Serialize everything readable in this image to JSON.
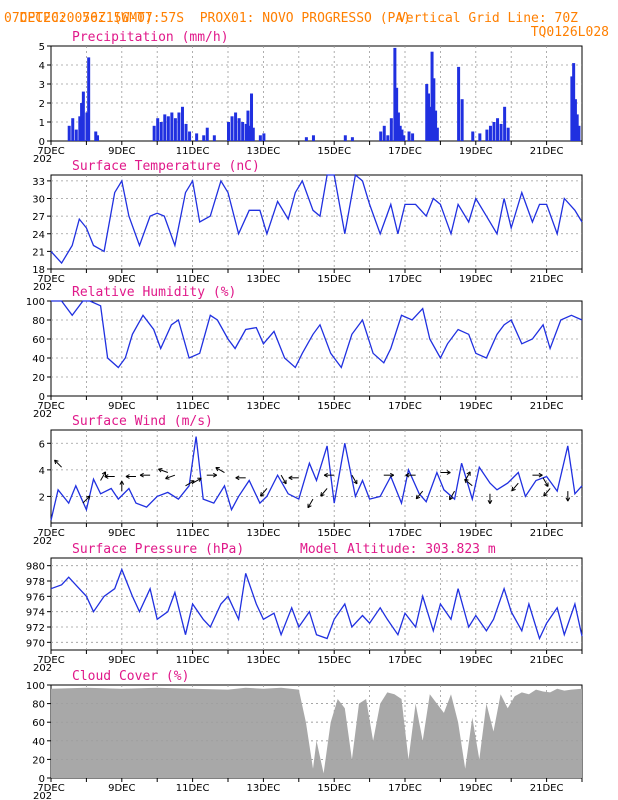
{
  "header": {
    "line1_left": "CPTEC:",
    "coords": "056:15W-07:57S",
    "station": "PROX01: NOVO PROGRESSO (PA)",
    "date": "07DEC2020 70Z (GMT)",
    "grid_line": "Vertical Grid Line: 70Z",
    "model": "TQ0126L028"
  },
  "x_axis": {
    "day_start": 7,
    "day_end": 22,
    "labels": [
      "7DEC",
      "9DEC",
      "11DEC",
      "13DEC",
      "15DEC",
      "17DEC",
      "19DEC",
      "21DEC"
    ],
    "label_days": [
      7,
      9,
      11,
      13,
      15,
      17,
      19,
      21
    ],
    "overlap_mark": "202"
  },
  "colors": {
    "line": "#2030e0",
    "bar": "#2030e0",
    "cloud": "#a8a8a8",
    "title": "#e0198a",
    "header": "#ff7f00"
  },
  "chart_data": [
    {
      "type": "bar",
      "title": "Precipitation (mm/h)",
      "ylim": [
        0,
        5
      ],
      "yticks": [
        0,
        1,
        2,
        3,
        4,
        5
      ],
      "series_x_days": [
        7.5,
        7.6,
        7.7,
        7.8,
        7.85,
        7.9,
        8.0,
        8.05,
        8.25,
        8.3,
        9.9,
        10.0,
        10.1,
        10.2,
        10.3,
        10.4,
        10.5,
        10.6,
        10.7,
        10.8,
        10.9,
        11.1,
        11.3,
        11.4,
        11.6,
        12.0,
        12.1,
        12.2,
        12.3,
        12.4,
        12.5,
        12.55,
        12.6,
        12.65,
        12.7,
        12.9,
        13.0,
        14.2,
        14.4,
        15.3,
        15.5,
        16.3,
        16.4,
        16.5,
        16.6,
        16.7,
        16.75,
        16.8,
        16.85,
        16.9,
        16.95,
        17.1,
        17.2,
        17.6,
        17.65,
        17.7,
        17.75,
        17.8,
        17.85,
        17.9,
        18.5,
        18.6,
        18.9,
        19.1,
        19.3,
        19.4,
        19.5,
        19.6,
        19.7,
        19.8,
        19.9,
        21.7,
        21.75,
        21.8,
        21.85,
        21.9
      ],
      "values": [
        0.8,
        1.2,
        0.6,
        1.3,
        2.0,
        2.6,
        1.5,
        4.4,
        0.5,
        0.3,
        0.8,
        1.2,
        1.0,
        1.4,
        1.3,
        1.5,
        1.2,
        1.5,
        1.8,
        0.9,
        0.5,
        0.4,
        0.3,
        0.7,
        0.3,
        1.0,
        1.3,
        1.5,
        1.2,
        1.0,
        0.9,
        1.6,
        0.8,
        2.5,
        0.7,
        0.3,
        0.4,
        0.2,
        0.3,
        0.3,
        0.2,
        0.5,
        0.8,
        0.3,
        1.2,
        4.9,
        2.8,
        1.5,
        0.8,
        0.6,
        0.3,
        0.5,
        0.4,
        3.0,
        2.5,
        1.8,
        4.7,
        3.3,
        1.6,
        0.7,
        3.9,
        2.2,
        0.5,
        0.4,
        0.6,
        0.8,
        1.0,
        1.2,
        0.9,
        1.8,
        0.7,
        3.4,
        4.1,
        2.2,
        1.4,
        0.8
      ]
    },
    {
      "type": "line",
      "title": "Surface Temperature (nC)",
      "ylim": [
        18,
        34
      ],
      "yticks": [
        18,
        21,
        24,
        27,
        30,
        33
      ],
      "x_days": [
        7.0,
        7.3,
        7.6,
        7.8,
        8.0,
        8.2,
        8.5,
        8.8,
        9.0,
        9.2,
        9.5,
        9.8,
        10.0,
        10.2,
        10.5,
        10.8,
        11.0,
        11.2,
        11.5,
        11.8,
        12.0,
        12.3,
        12.6,
        12.9,
        13.1,
        13.4,
        13.7,
        13.9,
        14.1,
        14.4,
        14.6,
        14.8,
        15.0,
        15.3,
        15.6,
        15.8,
        16.0,
        16.3,
        16.6,
        16.8,
        17.0,
        17.3,
        17.6,
        17.8,
        18.0,
        18.3,
        18.5,
        18.8,
        19.0,
        19.3,
        19.6,
        19.8,
        20.0,
        20.3,
        20.6,
        20.8,
        21.0,
        21.3,
        21.5,
        21.8,
        22.0
      ],
      "values": [
        21,
        19,
        22,
        26.5,
        25,
        22,
        21,
        31,
        33,
        27,
        22,
        27,
        27.5,
        27,
        22,
        31,
        33,
        26,
        27,
        33,
        31,
        24,
        28,
        28,
        24,
        29.5,
        26.5,
        31,
        33,
        28,
        27,
        34,
        34,
        24,
        34,
        33,
        29,
        24,
        29,
        24,
        29,
        29,
        27,
        30,
        29,
        24,
        29,
        26,
        30,
        27,
        24,
        30,
        25,
        31,
        26,
        29,
        29,
        24,
        30,
        28,
        26
      ]
    },
    {
      "type": "line",
      "title": "Relative Humidity (%)",
      "ylim": [
        0,
        100
      ],
      "yticks": [
        0,
        20,
        40,
        60,
        80,
        100
      ],
      "x_days": [
        7.0,
        7.3,
        7.6,
        7.9,
        8.1,
        8.4,
        8.6,
        8.9,
        9.1,
        9.3,
        9.6,
        9.9,
        10.1,
        10.4,
        10.6,
        10.9,
        11.2,
        11.5,
        11.7,
        12.0,
        12.2,
        12.5,
        12.8,
        13.0,
        13.3,
        13.6,
        13.9,
        14.1,
        14.4,
        14.6,
        14.9,
        15.2,
        15.5,
        15.8,
        16.1,
        16.4,
        16.6,
        16.9,
        17.2,
        17.5,
        17.7,
        18.0,
        18.2,
        18.5,
        18.8,
        19.0,
        19.3,
        19.6,
        19.8,
        20.0,
        20.3,
        20.6,
        20.9,
        21.1,
        21.4,
        21.7,
        22.0
      ],
      "values": [
        100,
        100,
        85,
        100,
        100,
        95,
        40,
        30,
        40,
        65,
        85,
        70,
        50,
        75,
        80,
        40,
        45,
        85,
        80,
        60,
        50,
        70,
        72,
        55,
        68,
        40,
        30,
        45,
        65,
        75,
        45,
        30,
        65,
        80,
        45,
        35,
        50,
        85,
        80,
        92,
        60,
        40,
        55,
        70,
        65,
        45,
        40,
        65,
        75,
        80,
        55,
        60,
        75,
        50,
        80,
        85,
        80
      ]
    },
    {
      "type": "line",
      "title": "Surface Wind (m/s)",
      "ylim": [
        0,
        7
      ],
      "yticks": [
        2,
        4,
        6
      ],
      "x_days": [
        7.0,
        7.2,
        7.5,
        7.7,
        8.0,
        8.2,
        8.4,
        8.7,
        8.9,
        9.2,
        9.4,
        9.7,
        10.0,
        10.3,
        10.6,
        10.9,
        11.1,
        11.3,
        11.6,
        11.9,
        12.1,
        12.3,
        12.6,
        12.9,
        13.1,
        13.4,
        13.7,
        14.0,
        14.3,
        14.5,
        14.8,
        15.0,
        15.3,
        15.6,
        15.8,
        16.0,
        16.3,
        16.6,
        16.9,
        17.1,
        17.4,
        17.6,
        17.9,
        18.1,
        18.4,
        18.6,
        18.9,
        19.1,
        19.4,
        19.6,
        19.9,
        20.2,
        20.4,
        20.7,
        21.0,
        21.3,
        21.6,
        21.8,
        22.0
      ],
      "values": [
        0.2,
        2.5,
        1.5,
        2.8,
        1.0,
        3.3,
        2.2,
        2.6,
        1.8,
        2.6,
        1.5,
        1.2,
        2.0,
        2.3,
        1.8,
        2.8,
        6.5,
        1.8,
        1.5,
        2.8,
        1.0,
        2.0,
        3.2,
        1.5,
        2.0,
        3.6,
        2.2,
        1.8,
        4.5,
        3.2,
        5.8,
        1.5,
        6.0,
        2.0,
        3.2,
        1.8,
        2.0,
        3.5,
        1.5,
        4.0,
        2.2,
        1.6,
        3.8,
        2.5,
        1.8,
        4.5,
        1.8,
        4.2,
        3.0,
        2.5,
        3.0,
        3.8,
        2.0,
        3.2,
        3.5,
        2.4,
        5.8,
        2.2,
        2.8
      ],
      "arrows": [
        {
          "day": 7.3,
          "speed": 4.2,
          "dir": 135
        },
        {
          "day": 7.9,
          "speed": 1.5,
          "dir": 45
        },
        {
          "day": 8.4,
          "speed": 3.2,
          "dir": 60
        },
        {
          "day": 8.8,
          "speed": 3.5,
          "dir": 180
        },
        {
          "day": 9.0,
          "speed": 2.4,
          "dir": 90
        },
        {
          "day": 9.4,
          "speed": 3.5,
          "dir": 180
        },
        {
          "day": 9.8,
          "speed": 3.6,
          "dir": 180
        },
        {
          "day": 10.3,
          "speed": 3.8,
          "dir": 160
        },
        {
          "day": 10.5,
          "speed": 3.6,
          "dir": 200
        },
        {
          "day": 10.8,
          "speed": 2.8,
          "dir": 30
        },
        {
          "day": 11.0,
          "speed": 3.0,
          "dir": 30
        },
        {
          "day": 11.4,
          "speed": 3.6,
          "dir": 0
        },
        {
          "day": 11.9,
          "speed": 3.8,
          "dir": 150
        },
        {
          "day": 12.5,
          "speed": 3.4,
          "dir": 180
        },
        {
          "day": 13.1,
          "speed": 2.6,
          "dir": 230
        },
        {
          "day": 13.5,
          "speed": 3.6,
          "dir": 300
        },
        {
          "day": 14.0,
          "speed": 3.4,
          "dir": 180
        },
        {
          "day": 14.4,
          "speed": 1.8,
          "dir": 240
        },
        {
          "day": 14.8,
          "speed": 2.6,
          "dir": 230
        },
        {
          "day": 15.0,
          "speed": 3.6,
          "dir": 180
        },
        {
          "day": 15.5,
          "speed": 3.6,
          "dir": 300
        },
        {
          "day": 16.4,
          "speed": 3.6,
          "dir": 0
        },
        {
          "day": 17.3,
          "speed": 3.6,
          "dir": 180
        },
        {
          "day": 17.5,
          "speed": 2.4,
          "dir": 230
        },
        {
          "day": 18.0,
          "speed": 3.8,
          "dir": 0
        },
        {
          "day": 18.4,
          "speed": 2.4,
          "dir": 240
        },
        {
          "day": 18.7,
          "speed": 3.2,
          "dir": 60
        },
        {
          "day": 18.9,
          "speed": 2.8,
          "dir": 140
        },
        {
          "day": 19.4,
          "speed": 2.2,
          "dir": 270
        },
        {
          "day": 20.2,
          "speed": 3.0,
          "dir": 230
        },
        {
          "day": 20.6,
          "speed": 3.6,
          "dir": 0
        },
        {
          "day": 20.9,
          "speed": 3.4,
          "dir": 300
        },
        {
          "day": 21.1,
          "speed": 2.6,
          "dir": 230
        },
        {
          "day": 21.6,
          "speed": 2.4,
          "dir": 270
        }
      ]
    },
    {
      "type": "line",
      "title": "Surface Pressure (hPa)",
      "subtitle": "Model Altitude: 303.823 m",
      "ylim": [
        969,
        981
      ],
      "yticks": [
        970,
        972,
        974,
        976,
        978,
        980
      ],
      "x_days": [
        7.0,
        7.3,
        7.5,
        7.8,
        8.0,
        8.2,
        8.5,
        8.8,
        9.0,
        9.3,
        9.5,
        9.8,
        10.0,
        10.3,
        10.5,
        10.8,
        11.0,
        11.3,
        11.5,
        11.8,
        12.0,
        12.3,
        12.5,
        12.8,
        13.0,
        13.3,
        13.5,
        13.8,
        14.0,
        14.3,
        14.5,
        14.8,
        15.0,
        15.3,
        15.5,
        15.8,
        16.0,
        16.3,
        16.5,
        16.8,
        17.0,
        17.3,
        17.5,
        17.8,
        18.0,
        18.3,
        18.5,
        18.8,
        19.0,
        19.3,
        19.5,
        19.8,
        20.0,
        20.3,
        20.5,
        20.8,
        21.0,
        21.3,
        21.5,
        21.8,
        22.0
      ],
      "values": [
        977,
        977.5,
        978.5,
        977,
        976,
        974,
        976,
        977,
        979.5,
        976,
        974,
        977,
        973,
        974,
        976.5,
        971,
        975,
        973,
        972,
        975,
        976,
        973,
        979,
        975,
        973,
        973.8,
        971,
        974.5,
        972,
        974,
        971,
        970.5,
        973,
        975,
        972,
        973.5,
        972.5,
        974.5,
        973,
        971,
        973.8,
        972,
        976,
        971.5,
        975,
        973,
        977,
        972,
        973.5,
        971.5,
        973,
        977,
        974,
        971.5,
        975,
        970.5,
        972.5,
        974.5,
        971,
        975,
        970.8
      ]
    },
    {
      "type": "area",
      "title": "Cloud Cover (%)",
      "ylim": [
        0,
        100
      ],
      "yticks": [
        0,
        20,
        40,
        60,
        80,
        100
      ],
      "x_days": [
        7.0,
        8.0,
        9.0,
        10.0,
        11.0,
        12.0,
        12.5,
        13.0,
        13.5,
        14.0,
        14.2,
        14.4,
        14.5,
        14.7,
        14.9,
        15.1,
        15.3,
        15.5,
        15.7,
        15.9,
        16.1,
        16.3,
        16.5,
        16.7,
        16.9,
        17.1,
        17.3,
        17.5,
        17.7,
        17.9,
        18.1,
        18.3,
        18.5,
        18.7,
        18.9,
        19.1,
        19.3,
        19.5,
        19.7,
        19.9,
        20.1,
        20.3,
        20.5,
        20.7,
        20.9,
        21.1,
        21.3,
        21.5,
        21.7,
        22.0
      ],
      "values": [
        96,
        97,
        96,
        97,
        96,
        95,
        97,
        96,
        97,
        95,
        60,
        10,
        40,
        5,
        60,
        85,
        75,
        20,
        80,
        85,
        40,
        80,
        92,
        90,
        85,
        20,
        80,
        40,
        90,
        80,
        70,
        90,
        60,
        10,
        65,
        20,
        80,
        50,
        90,
        75,
        88,
        92,
        90,
        95,
        93,
        92,
        96,
        94,
        95,
        96
      ]
    }
  ]
}
